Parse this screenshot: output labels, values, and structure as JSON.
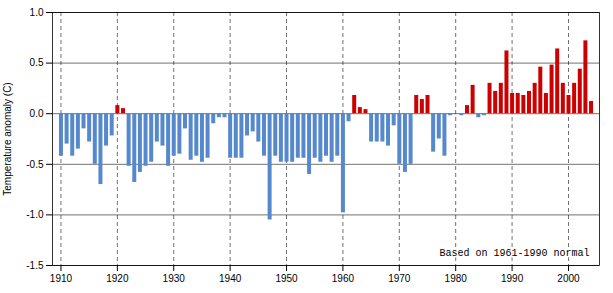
{
  "chart_data": {
    "type": "bar",
    "x": [
      1910,
      1911,
      1912,
      1913,
      1914,
      1915,
      1916,
      1917,
      1918,
      1919,
      1920,
      1921,
      1922,
      1923,
      1924,
      1925,
      1926,
      1927,
      1928,
      1929,
      1930,
      1931,
      1932,
      1933,
      1934,
      1935,
      1936,
      1937,
      1938,
      1939,
      1940,
      1941,
      1942,
      1943,
      1944,
      1945,
      1946,
      1947,
      1948,
      1949,
      1950,
      1951,
      1952,
      1953,
      1954,
      1955,
      1956,
      1957,
      1958,
      1959,
      1960,
      1961,
      1962,
      1963,
      1964,
      1965,
      1966,
      1967,
      1968,
      1969,
      1970,
      1971,
      1972,
      1973,
      1974,
      1975,
      1976,
      1977,
      1978,
      1979,
      1980,
      1981,
      1982,
      1983,
      1984,
      1985,
      1986,
      1987,
      1988,
      1989,
      1990,
      1991,
      1992,
      1993,
      1994,
      1995,
      1996,
      1997,
      1998,
      1999,
      2000,
      2001,
      2002,
      2003,
      2004
    ],
    "values": [
      -0.42,
      -0.3,
      -0.42,
      -0.35,
      -0.15,
      -0.28,
      -0.5,
      -0.7,
      -0.32,
      -0.22,
      0.08,
      0.05,
      -0.52,
      -0.68,
      -0.58,
      -0.52,
      -0.48,
      -0.28,
      -0.32,
      -0.52,
      -0.42,
      -0.4,
      -0.15,
      -0.46,
      -0.42,
      -0.48,
      -0.44,
      -0.1,
      -0.04,
      -0.04,
      -0.44,
      -0.44,
      -0.44,
      -0.22,
      -0.18,
      -0.28,
      -0.42,
      -1.05,
      -0.42,
      -0.48,
      -0.48,
      -0.48,
      -0.44,
      -0.44,
      -0.6,
      -0.44,
      -0.48,
      -0.42,
      -0.48,
      -0.42,
      -0.98,
      -0.08,
      0.18,
      0.06,
      0.04,
      -0.28,
      -0.28,
      -0.28,
      -0.32,
      -0.12,
      -0.5,
      -0.58,
      -0.5,
      0.18,
      0.14,
      0.18,
      -0.38,
      -0.25,
      -0.42,
      -0.02,
      0.0,
      -0.02,
      0.08,
      0.28,
      -0.04,
      -0.02,
      0.3,
      0.22,
      0.3,
      0.62,
      0.2,
      0.2,
      0.18,
      0.22,
      0.3,
      0.46,
      0.2,
      0.48,
      0.64,
      0.3,
      0.18,
      0.3,
      0.44,
      0.72,
      0.12
    ],
    "colors": [
      "#5588cc",
      "#5588cc",
      "#5588cc",
      "#5588cc",
      "#5588cc",
      "#5588cc",
      "#5588cc",
      "#5588cc",
      "#5588cc",
      "#5588cc",
      "#cc0000",
      "#cc0000",
      "#5588cc",
      "#5588cc",
      "#5588cc",
      "#5588cc",
      "#5588cc",
      "#5588cc",
      "#5588cc",
      "#5588cc",
      "#5588cc",
      "#5588cc",
      "#5588cc",
      "#5588cc",
      "#5588cc",
      "#5588cc",
      "#5588cc",
      "#5588cc",
      "#5588cc",
      "#5588cc",
      "#5588cc",
      "#5588cc",
      "#5588cc",
      "#5588cc",
      "#5588cc",
      "#5588cc",
      "#5588cc",
      "#5588cc",
      "#5588cc",
      "#5588cc",
      "#5588cc",
      "#5588cc",
      "#5588cc",
      "#5588cc",
      "#5588cc",
      "#5588cc",
      "#5588cc",
      "#5588cc",
      "#5588cc",
      "#5588cc",
      "#5588cc",
      "#5588cc",
      "#cc0000",
      "#cc0000",
      "#cc0000",
      "#5588cc",
      "#5588cc",
      "#5588cc",
      "#5588cc",
      "#5588cc",
      "#5588cc",
      "#5588cc",
      "#5588cc",
      "#cc0000",
      "#cc0000",
      "#cc0000",
      "#5588cc",
      "#5588cc",
      "#5588cc",
      "#5588cc",
      "#cc0000",
      "#5588cc",
      "#cc0000",
      "#cc0000",
      "#5588cc",
      "#5588cc",
      "#cc0000",
      "#cc0000",
      "#cc0000",
      "#cc0000",
      "#cc0000",
      "#cc0000",
      "#cc0000",
      "#cc0000",
      "#cc0000",
      "#cc0000",
      "#cc0000",
      "#cc0000",
      "#cc0000",
      "#cc0000",
      "#cc0000",
      "#cc0000",
      "#cc0000",
      "#cc0000",
      "#cc0000"
    ],
    "y_label": "Temperature anomaly (C)",
    "annotation": "Based on 1961-1990 normal",
    "xlim": [
      1908.5,
      2005.5
    ],
    "xticks": [
      1910,
      1920,
      1930,
      1940,
      1950,
      1960,
      1970,
      1980,
      1990,
      2000
    ],
    "ylim": [
      -1.5,
      1.0
    ],
    "yticks": [
      -1.5,
      {
        "value": -1.0,
        "label": "-1.0"
      },
      -0.5,
      {
        "value": 0.0,
        "label": "0.0"
      },
      0.5,
      {
        "value": 1.0,
        "label": "1.0"
      }
    ],
    "grid": true
  }
}
